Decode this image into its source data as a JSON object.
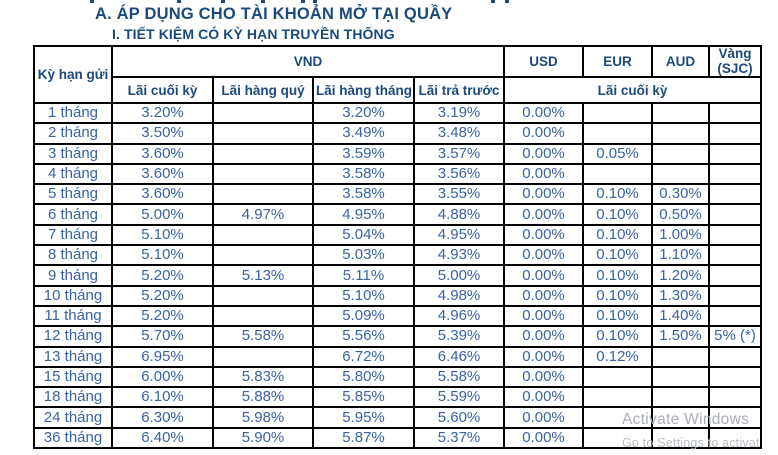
{
  "page": {
    "title_a": "A. ÁP DỤNG CHO TÀI KHOẢN MỞ TẠI QUẦY",
    "title_i": "I. TIẾT KIỆM CÓ KỲ HẠN TRUYỀN THỐNG"
  },
  "colors": {
    "heading_navy": "#1b4a7a",
    "data_blue": "#3a63a0",
    "border_black": "#000000",
    "watermark_gray": "#a9aeb4"
  },
  "table": {
    "header": {
      "term_col": "Kỳ hạn gửi",
      "vnd_group": "VND",
      "vnd_subcols": [
        "Lãi cuối kỳ",
        "Lãi hàng quý",
        "Lãi hàng tháng",
        "Lãi trả trước"
      ],
      "currency_cols": [
        "USD",
        "EUR",
        "AUD"
      ],
      "gold_col_line1": "Vàng",
      "gold_col_line2": "(SJC)",
      "fx_subheader": "Lãi cuối kỳ"
    },
    "rows": [
      {
        "term": "1 tháng",
        "values": [
          "3.20%",
          "",
          "3.20%",
          "3.19%",
          "0.00%",
          "",
          "",
          ""
        ]
      },
      {
        "term": "2 tháng",
        "values": [
          "3.50%",
          "",
          "3.49%",
          "3.48%",
          "0.00%",
          "",
          "",
          ""
        ]
      },
      {
        "term": "3 tháng",
        "values": [
          "3.60%",
          "",
          "3.59%",
          "3.57%",
          "0.00%",
          "0.05%",
          "",
          ""
        ]
      },
      {
        "term": "4 tháng",
        "values": [
          "3.60%",
          "",
          "3.58%",
          "3.56%",
          "0.00%",
          "",
          "",
          ""
        ]
      },
      {
        "term": "5 tháng",
        "values": [
          "3.60%",
          "",
          "3.58%",
          "3.55%",
          "0.00%",
          "0.10%",
          "0.30%",
          ""
        ]
      },
      {
        "term": "6 tháng",
        "values": [
          "5.00%",
          "4.97%",
          "4.95%",
          "4.88%",
          "0.00%",
          "0.10%",
          "0.50%",
          ""
        ]
      },
      {
        "term": "7 tháng",
        "values": [
          "5.10%",
          "",
          "5.04%",
          "4.95%",
          "0.00%",
          "0.10%",
          "1.00%",
          ""
        ]
      },
      {
        "term": "8 tháng",
        "values": [
          "5.10%",
          "",
          "5.03%",
          "4.93%",
          "0.00%",
          "0.10%",
          "1.10%",
          ""
        ]
      },
      {
        "term": "9 tháng",
        "values": [
          "5.20%",
          "5.13%",
          "5.11%",
          "5.00%",
          "0.00%",
          "0.10%",
          "1.20%",
          ""
        ]
      },
      {
        "term": "10 tháng",
        "values": [
          "5.20%",
          "",
          "5.10%",
          "4.98%",
          "0.00%",
          "0.10%",
          "1.30%",
          ""
        ]
      },
      {
        "term": "11 tháng",
        "values": [
          "5.20%",
          "",
          "5.09%",
          "4.96%",
          "0.00%",
          "0.10%",
          "1.40%",
          ""
        ]
      },
      {
        "term": "12 tháng",
        "values": [
          "5.70%",
          "5.58%",
          "5.56%",
          "5.39%",
          "0.00%",
          "0.10%",
          "1.50%",
          "5% (*)"
        ]
      },
      {
        "term": "13 tháng",
        "values": [
          "6.95%",
          "",
          "6.72%",
          "6.46%",
          "0.00%",
          "0.12%",
          "",
          ""
        ]
      },
      {
        "term": "15 tháng",
        "values": [
          "6.00%",
          "5.83%",
          "5.80%",
          "5.58%",
          "0.00%",
          "",
          "",
          ""
        ]
      },
      {
        "term": "18 tháng",
        "values": [
          "6.10%",
          "5.88%",
          "5.85%",
          "5.59%",
          "0.00%",
          "",
          "",
          ""
        ]
      },
      {
        "term": "24 tháng",
        "values": [
          "6.30%",
          "5.98%",
          "5.95%",
          "5.60%",
          "0.00%",
          "",
          "",
          ""
        ]
      },
      {
        "term": "36 tháng",
        "values": [
          "6.40%",
          "5.90%",
          "5.87%",
          "5.37%",
          "0.00%",
          "",
          "",
          ""
        ]
      }
    ]
  },
  "watermark": {
    "line1": "Activate Windows",
    "line2": "Go to Settings to activat"
  }
}
